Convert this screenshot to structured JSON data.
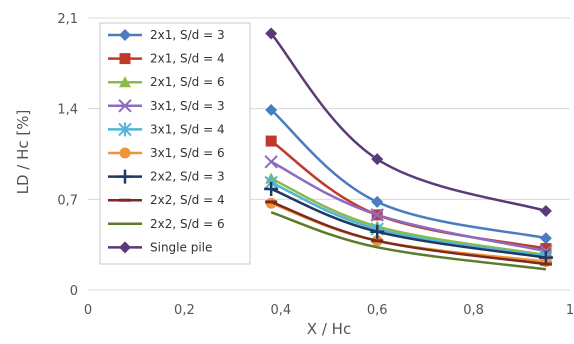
{
  "chart_data": {
    "type": "line",
    "xlabel": "X / Hc",
    "ylabel": "LD / Hc [%]",
    "xlim": [
      0,
      1
    ],
    "ylim": [
      0,
      2.1
    ],
    "xticks": [
      0,
      0.2,
      0.4,
      0.6,
      0.8,
      1
    ],
    "xtick_labels": [
      "0",
      "0,2",
      "0,4",
      "0,6",
      "0,8",
      "1"
    ],
    "yticks": [
      0,
      0.7,
      1.4,
      2.1
    ],
    "ytick_labels": [
      "0",
      "0,7",
      "1,4",
      "2,1"
    ],
    "grid": "horizontal",
    "legend_position": "top-left",
    "x": [
      0.38,
      0.6,
      0.95
    ],
    "series": [
      {
        "name": "2x1, S/d = 3",
        "values": [
          1.39,
          0.68,
          0.4
        ],
        "color": "#4a7cc0",
        "marker": "diamond"
      },
      {
        "name": "2x1, S/d = 4",
        "values": [
          1.15,
          0.58,
          0.32
        ],
        "color": "#c0392b",
        "marker": "square"
      },
      {
        "name": "2x1, S/d = 6",
        "values": [
          0.86,
          0.49,
          0.27
        ],
        "color": "#8db84a",
        "marker": "triangle"
      },
      {
        "name": "3x1, S/d = 3",
        "values": [
          0.99,
          0.58,
          0.3
        ],
        "color": "#8e6bbf",
        "marker": "x"
      },
      {
        "name": "3x1, S/d = 4",
        "values": [
          0.83,
          0.47,
          0.26
        ],
        "color": "#4fb6d8",
        "marker": "star"
      },
      {
        "name": "3x1, S/d = 6",
        "values": [
          0.67,
          0.38,
          0.22
        ],
        "color": "#f0943a",
        "marker": "circle"
      },
      {
        "name": "2x2, S/d = 3",
        "values": [
          0.78,
          0.45,
          0.25
        ],
        "color": "#1f3864",
        "marker": "plus"
      },
      {
        "name": "2x2, S/d = 4",
        "values": [
          0.68,
          0.38,
          0.2
        ],
        "color": "#7b2a1e",
        "marker": "dash"
      },
      {
        "name": "2x2, S/d = 6",
        "values": [
          0.6,
          0.33,
          0.16
        ],
        "color": "#5d7a2a",
        "marker": "none"
      },
      {
        "name": "Single pile",
        "values": [
          1.98,
          1.01,
          0.61
        ],
        "color": "#5b3a78",
        "marker": "diamond"
      }
    ]
  }
}
